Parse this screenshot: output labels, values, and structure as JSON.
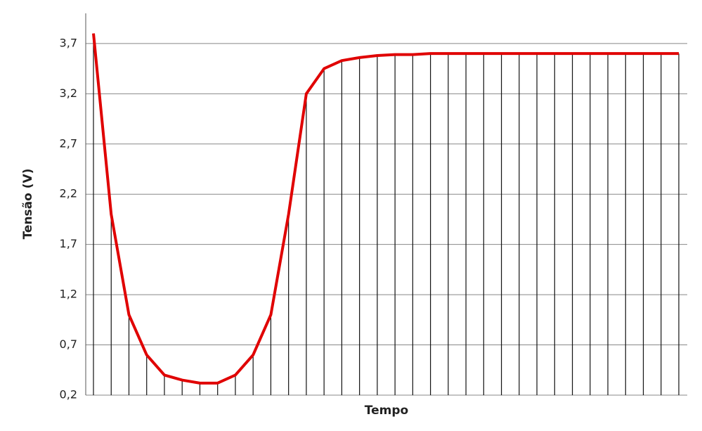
{
  "chart_data": {
    "type": "line",
    "x_label": "Tempo",
    "y_label": "Tensão (V)",
    "categories": [
      null,
      null,
      null,
      null,
      null,
      null,
      null,
      null,
      null,
      null,
      null,
      null,
      null,
      null,
      null,
      null,
      null,
      null,
      null,
      null,
      null,
      null,
      null,
      null,
      null,
      null,
      null,
      null,
      null,
      null,
      null,
      null,
      null,
      null
    ],
    "values": [
      3.8,
      2.0,
      1.0,
      0.6,
      0.4,
      0.35,
      0.32,
      0.32,
      0.4,
      0.6,
      1.0,
      2.0,
      3.2,
      3.45,
      3.53,
      3.56,
      3.58,
      3.59,
      3.59,
      3.6,
      3.6,
      3.6,
      3.6,
      3.6,
      3.6,
      3.6,
      3.6,
      3.6,
      3.6,
      3.6,
      3.6,
      3.6,
      3.6,
      3.6
    ],
    "color": "#e00000",
    "drop_lines": true,
    "ylim": [
      0.2,
      4.0
    ],
    "yticks": [
      {
        "value": 0.2,
        "label": "0,2"
      },
      {
        "value": 0.7,
        "label": "0,7"
      },
      {
        "value": 1.2,
        "label": "1,2"
      },
      {
        "value": 1.7,
        "label": "1,7"
      },
      {
        "value": 2.2,
        "label": "2,2"
      },
      {
        "value": 2.7,
        "label": "2,7"
      },
      {
        "value": 3.2,
        "label": "3,2"
      },
      {
        "value": 3.7,
        "label": "3,7"
      }
    ],
    "grid": true
  }
}
